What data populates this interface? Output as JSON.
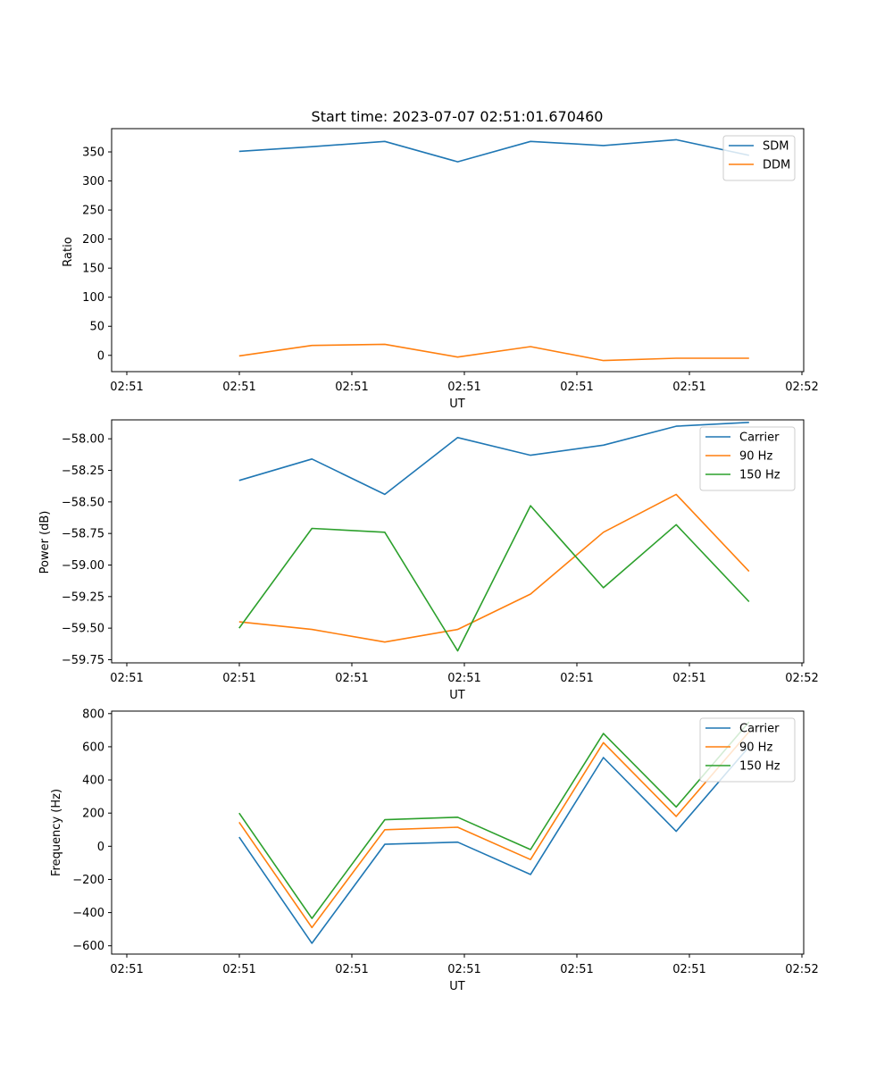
{
  "chart_data": [
    {
      "type": "line",
      "title": "Start time: 2023-07-07 02:51:01.670460",
      "xlabel": "UT",
      "ylabel": "Ratio",
      "x_ticks": [
        "02:51",
        "02:51",
        "02:51",
        "02:51",
        "02:51",
        "02:51",
        "02:52"
      ],
      "x_range": [
        -0.75,
        8.75
      ],
      "x": [
        1,
        2,
        3,
        4,
        5,
        6,
        7,
        8
      ],
      "ylim": [
        -28,
        390
      ],
      "y_ticks": [
        0,
        50,
        100,
        150,
        200,
        250,
        300,
        350
      ],
      "y_tick_labels": [
        "0",
        "50",
        "100",
        "150",
        "200",
        "250",
        "300",
        "350"
      ],
      "legend_position": "top-right",
      "series": [
        {
          "name": "SDM",
          "color": "#1f77b4",
          "values": [
            351,
            359,
            368,
            333,
            368,
            361,
            371,
            344
          ]
        },
        {
          "name": "DDM",
          "color": "#ff7f0e",
          "values": [
            -1,
            17,
            19,
            -3,
            15,
            -9,
            -5,
            -5
          ]
        }
      ]
    },
    {
      "type": "line",
      "title": "",
      "xlabel": "UT",
      "ylabel": "Power (dB)",
      "x_ticks": [
        "02:51",
        "02:51",
        "02:51",
        "02:51",
        "02:51",
        "02:51",
        "02:52"
      ],
      "x_range": [
        -0.75,
        8.75
      ],
      "x": [
        1,
        2,
        3,
        4,
        5,
        6,
        7,
        8
      ],
      "ylim": [
        -59.775,
        -57.85
      ],
      "y_ticks": [
        -58.0,
        -58.25,
        -58.5,
        -58.75,
        -59.0,
        -59.25,
        -59.5,
        -59.75
      ],
      "y_tick_labels": [
        "−58.00",
        "−58.25",
        "−58.50",
        "−58.75",
        "−59.00",
        "−59.25",
        "−59.50",
        "−59.75"
      ],
      "legend_position": "top-right",
      "series": [
        {
          "name": "Carrier",
          "color": "#1f77b4",
          "values": [
            -58.33,
            -58.16,
            -58.44,
            -57.99,
            -58.13,
            -58.05,
            -57.9,
            -57.87
          ]
        },
        {
          "name": "90 Hz",
          "color": "#ff7f0e",
          "values": [
            -59.45,
            -59.51,
            -59.61,
            -59.51,
            -59.23,
            -58.74,
            -58.44,
            -59.05
          ]
        },
        {
          "name": "150 Hz",
          "color": "#2ca02c",
          "values": [
            -59.5,
            -58.71,
            -58.74,
            -59.68,
            -58.53,
            -59.18,
            -58.68,
            -59.29
          ]
        }
      ]
    },
    {
      "type": "line",
      "title": "",
      "xlabel": "UT",
      "ylabel": "Frequency (Hz)",
      "x_ticks": [
        "02:51",
        "02:51",
        "02:51",
        "02:51",
        "02:51",
        "02:51",
        "02:52"
      ],
      "x_range": [
        -0.75,
        8.75
      ],
      "x": [
        1,
        2,
        3,
        4,
        5,
        6,
        7,
        8
      ],
      "ylim": [
        -650,
        815
      ],
      "y_ticks": [
        800,
        600,
        400,
        200,
        0,
        -200,
        -400,
        -600
      ],
      "y_tick_labels": [
        "800",
        "600",
        "400",
        "200",
        "0",
        "−200",
        "−400",
        "−600"
      ],
      "legend_position": "top-right",
      "series": [
        {
          "name": "Carrier",
          "color": "#1f77b4",
          "values": [
            55,
            -585,
            12,
            25,
            -170,
            535,
            90,
            600
          ]
        },
        {
          "name": "90 Hz",
          "color": "#ff7f0e",
          "values": [
            145,
            -490,
            100,
            115,
            -80,
            625,
            180,
            690
          ]
        },
        {
          "name": "150 Hz",
          "color": "#2ca02c",
          "values": [
            200,
            -435,
            160,
            175,
            -20,
            680,
            237,
            750
          ]
        }
      ]
    }
  ]
}
